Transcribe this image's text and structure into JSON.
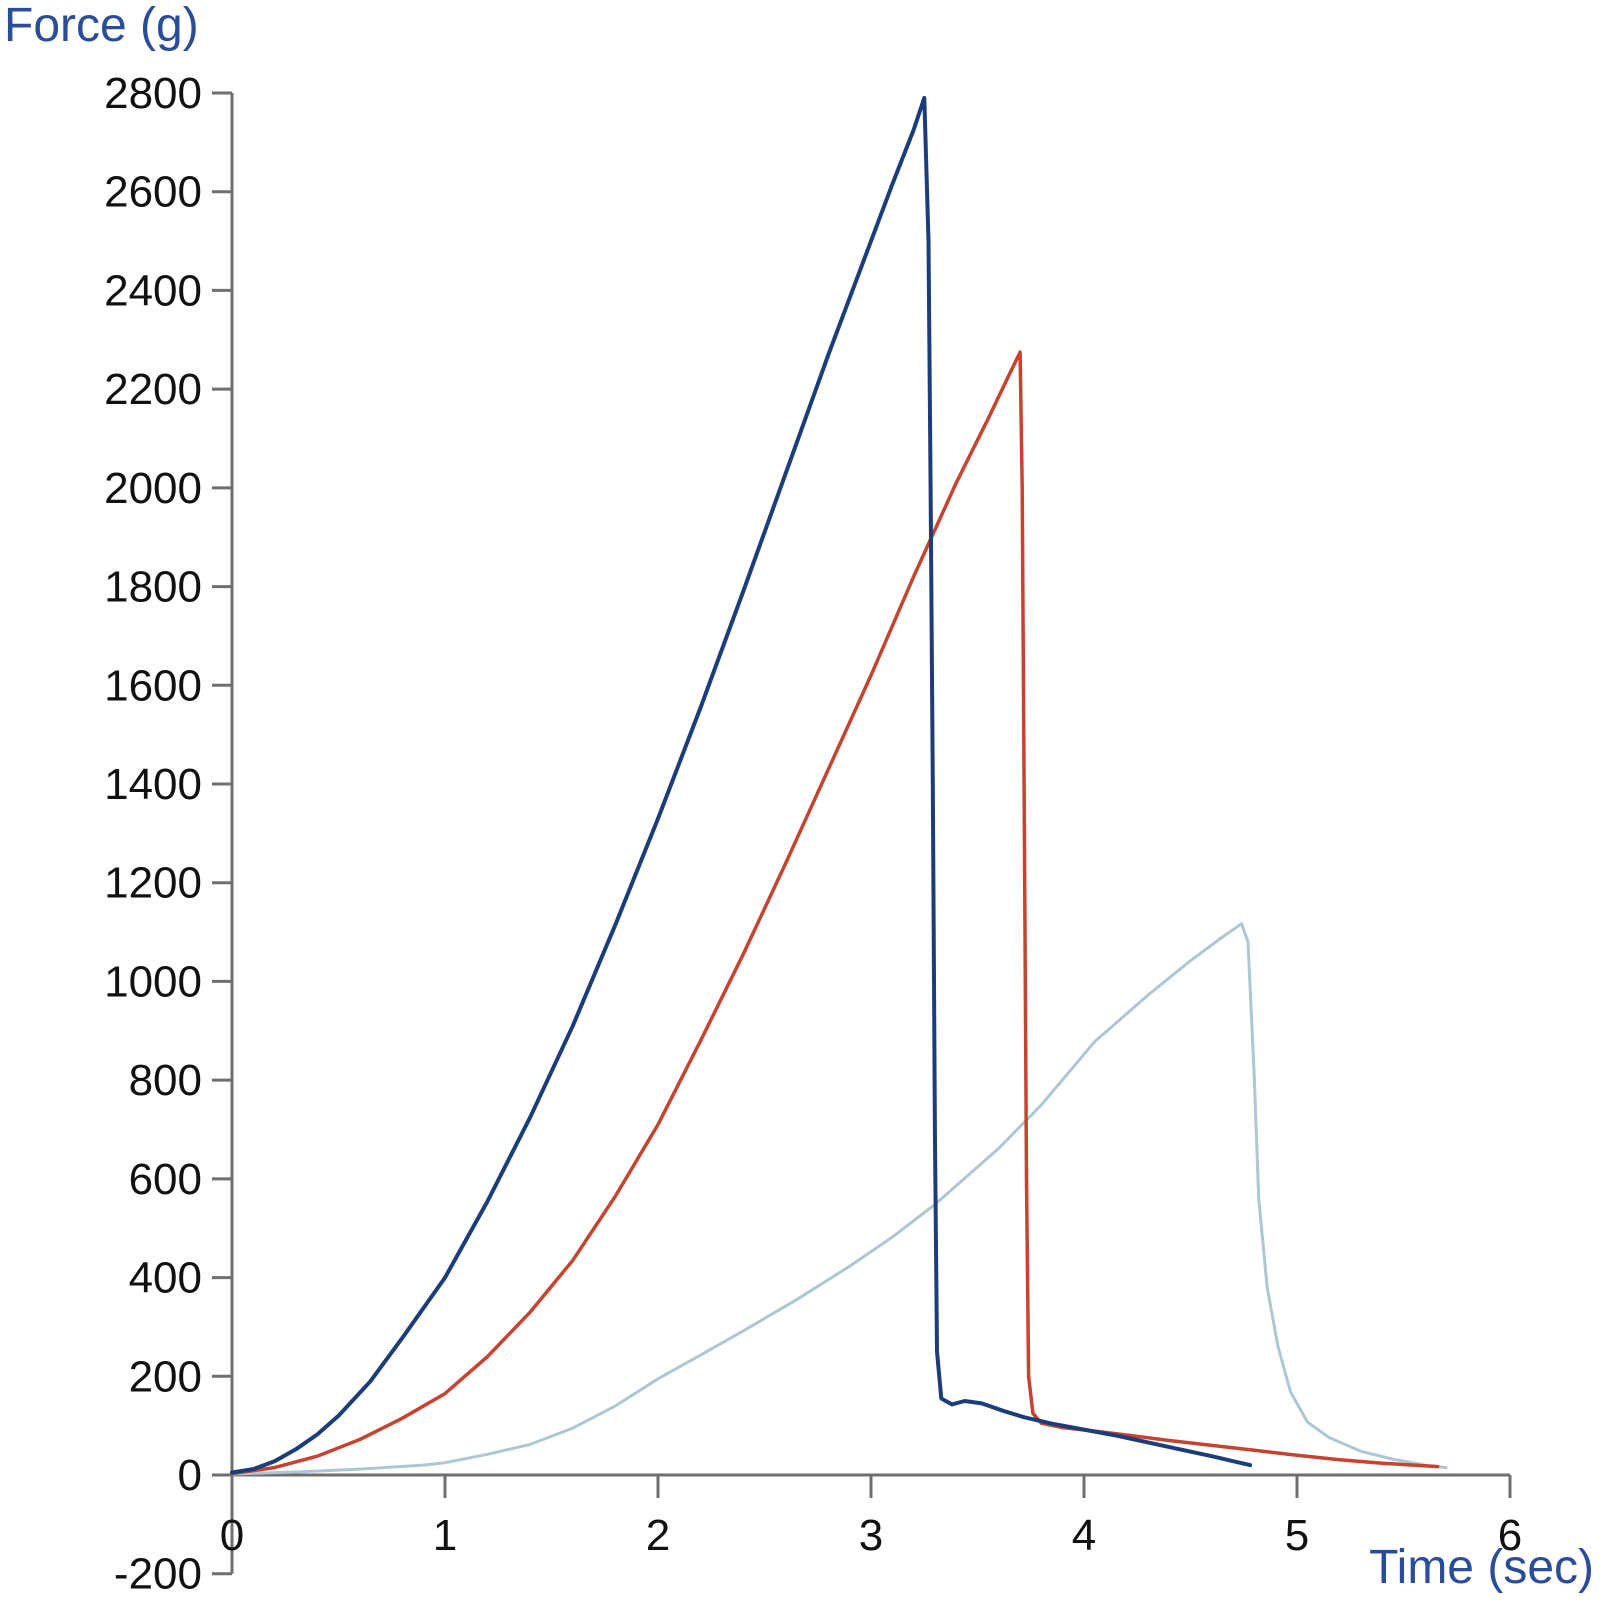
{
  "chart_data": {
    "type": "line",
    "title": "",
    "xlabel": "Time (sec)",
    "ylabel": "Force (g)",
    "xlim": [
      0,
      6
    ],
    "ylim": [
      -200,
      2800
    ],
    "x_ticks": [
      0,
      1,
      2,
      3,
      4,
      5,
      6
    ],
    "y_ticks": [
      -200,
      0,
      200,
      400,
      600,
      800,
      1000,
      1200,
      1400,
      1600,
      1800,
      2000,
      2200,
      2400,
      2600,
      2800
    ],
    "grid": false,
    "legend": "none",
    "axis_color": "#6f6f6f",
    "tick_label_color": "#111111",
    "axis_title_color": "#2a4d9b",
    "series": [
      {
        "name": "light-blue",
        "color": "#aec7d4",
        "stroke_width": 3,
        "points": [
          [
            0,
            2
          ],
          [
            0.3,
            6
          ],
          [
            0.6,
            12
          ],
          [
            0.9,
            20
          ],
          [
            1.0,
            25
          ],
          [
            1.2,
            42
          ],
          [
            1.4,
            62
          ],
          [
            1.6,
            95
          ],
          [
            1.8,
            140
          ],
          [
            2.0,
            195
          ],
          [
            2.2,
            243
          ],
          [
            2.4,
            292
          ],
          [
            2.65,
            355
          ],
          [
            2.9,
            423
          ],
          [
            3.1,
            482
          ],
          [
            3.3,
            548
          ],
          [
            3.6,
            662
          ],
          [
            3.8,
            750
          ],
          [
            4.05,
            878
          ],
          [
            4.3,
            972
          ],
          [
            4.5,
            1042
          ],
          [
            4.65,
            1090
          ],
          [
            4.74,
            1117
          ],
          [
            4.77,
            1080
          ],
          [
            4.8,
            800
          ],
          [
            4.82,
            560
          ],
          [
            4.86,
            380
          ],
          [
            4.91,
            262
          ],
          [
            4.97,
            168
          ],
          [
            5.05,
            107
          ],
          [
            5.15,
            76
          ],
          [
            5.3,
            48
          ],
          [
            5.45,
            32
          ],
          [
            5.6,
            20
          ],
          [
            5.7,
            15
          ]
        ]
      },
      {
        "name": "red",
        "color": "#c8432f",
        "stroke_width": 3.5,
        "points": [
          [
            0,
            3
          ],
          [
            0.2,
            15
          ],
          [
            0.4,
            38
          ],
          [
            0.6,
            72
          ],
          [
            0.8,
            115
          ],
          [
            1.0,
            165
          ],
          [
            1.2,
            240
          ],
          [
            1.4,
            330
          ],
          [
            1.6,
            435
          ],
          [
            1.8,
            565
          ],
          [
            2.0,
            710
          ],
          [
            2.2,
            880
          ],
          [
            2.4,
            1055
          ],
          [
            2.6,
            1240
          ],
          [
            2.8,
            1430
          ],
          [
            3.0,
            1620
          ],
          [
            3.2,
            1820
          ],
          [
            3.4,
            2010
          ],
          [
            3.55,
            2140
          ],
          [
            3.65,
            2230
          ],
          [
            3.7,
            2275
          ],
          [
            3.71,
            2000
          ],
          [
            3.72,
            1300
          ],
          [
            3.73,
            600
          ],
          [
            3.74,
            200
          ],
          [
            3.76,
            125
          ],
          [
            3.8,
            105
          ],
          [
            3.9,
            96
          ],
          [
            4.05,
            89
          ],
          [
            4.2,
            81
          ],
          [
            4.4,
            70
          ],
          [
            4.6,
            60
          ],
          [
            4.8,
            50
          ],
          [
            5.0,
            40
          ],
          [
            5.2,
            31
          ],
          [
            5.4,
            24
          ],
          [
            5.55,
            20
          ],
          [
            5.66,
            17
          ]
        ]
      },
      {
        "name": "dark-blue",
        "color": "#1c3d7c",
        "stroke_width": 4,
        "points": [
          [
            0,
            5
          ],
          [
            0.1,
            12
          ],
          [
            0.2,
            28
          ],
          [
            0.3,
            52
          ],
          [
            0.4,
            82
          ],
          [
            0.5,
            120
          ],
          [
            0.65,
            190
          ],
          [
            0.8,
            278
          ],
          [
            1.0,
            400
          ],
          [
            1.2,
            555
          ],
          [
            1.4,
            725
          ],
          [
            1.6,
            910
          ],
          [
            1.8,
            1115
          ],
          [
            2.0,
            1330
          ],
          [
            2.2,
            1555
          ],
          [
            2.4,
            1790
          ],
          [
            2.6,
            2030
          ],
          [
            2.8,
            2270
          ],
          [
            3.0,
            2500
          ],
          [
            3.1,
            2615
          ],
          [
            3.2,
            2725
          ],
          [
            3.25,
            2790
          ],
          [
            3.27,
            2500
          ],
          [
            3.28,
            2000
          ],
          [
            3.29,
            1400
          ],
          [
            3.3,
            700
          ],
          [
            3.31,
            250
          ],
          [
            3.33,
            155
          ],
          [
            3.38,
            143
          ],
          [
            3.44,
            150
          ],
          [
            3.52,
            145
          ],
          [
            3.62,
            130
          ],
          [
            3.72,
            117
          ],
          [
            3.85,
            104
          ],
          [
            4.0,
            92
          ],
          [
            4.15,
            80
          ],
          [
            4.3,
            66
          ],
          [
            4.45,
            52
          ],
          [
            4.6,
            38
          ],
          [
            4.72,
            26
          ],
          [
            4.78,
            20
          ]
        ]
      }
    ]
  }
}
